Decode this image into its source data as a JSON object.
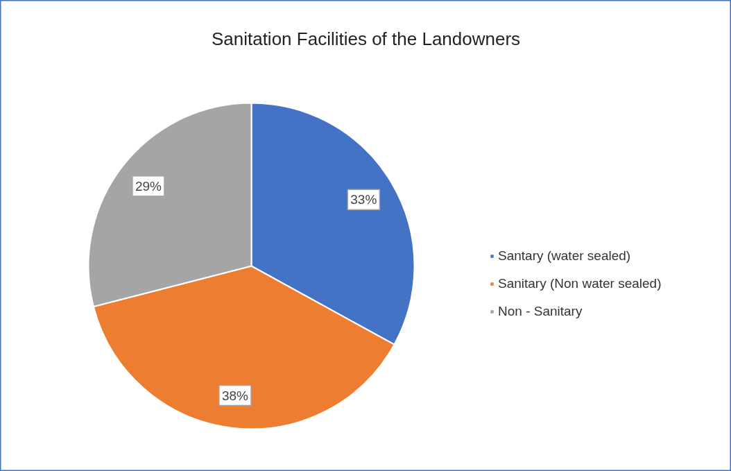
{
  "chart_data": {
    "type": "pie",
    "title": "Sanitation Facilities of the Landowners",
    "categories": [
      "Santary (water sealed)",
      "Sanitary (Non water sealed)",
      "Non - Sanitary"
    ],
    "values": [
      33,
      38,
      29
    ],
    "colors": [
      "#4472c4",
      "#ed7d31",
      "#a5a5a5"
    ],
    "value_labels": [
      "33%",
      "38%",
      "29%"
    ],
    "legend": "right"
  }
}
